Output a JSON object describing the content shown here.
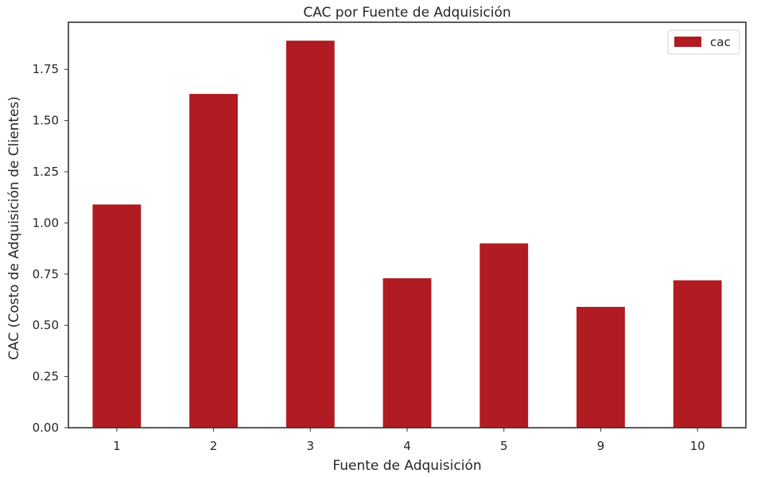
{
  "chart_data": {
    "type": "bar",
    "title": "CAC por Fuente de Adquisición",
    "xlabel": "Fuente de Adquisición",
    "ylabel": "CAC (Costo de Adquisición de Clientes)",
    "categories": [
      "1",
      "2",
      "3",
      "4",
      "5",
      "9",
      "10"
    ],
    "series": [
      {
        "name": "cac",
        "color": "#b01c22",
        "values": [
          1.09,
          1.63,
          1.89,
          0.73,
          0.9,
          0.59,
          0.72
        ]
      }
    ],
    "ylim": [
      0,
      1.98
    ],
    "yticks": [
      "0.00",
      "0.25",
      "0.50",
      "0.75",
      "1.00",
      "1.25",
      "1.50",
      "1.75"
    ],
    "ytick_values": [
      0,
      0.25,
      0.5,
      0.75,
      1.0,
      1.25,
      1.5,
      1.75
    ],
    "grid": false,
    "legend_position": "top-right"
  }
}
